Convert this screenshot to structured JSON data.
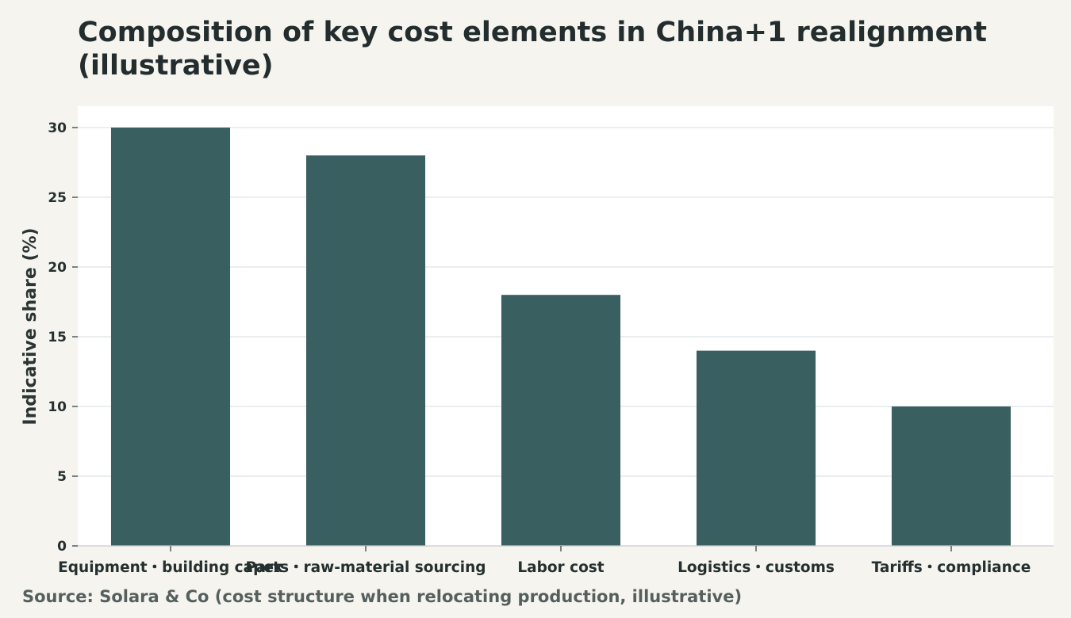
{
  "chart_data": {
    "type": "bar",
    "title": "Composition of key cost elements in China+1 realignment (illustrative)",
    "xlabel": "",
    "ylabel": "Indicative share (%)",
    "categories": [
      "Equipment・building capex",
      "Parts・raw-material sourcing",
      "Labor cost",
      "Logistics・customs",
      "Tariffs・compliance"
    ],
    "values": [
      30,
      28,
      18,
      14,
      10
    ],
    "ylim": [
      0,
      30
    ],
    "yticks": [
      0,
      5,
      10,
      15,
      20,
      25,
      30
    ],
    "grid": true,
    "colors": {
      "bar": "#3a5f60",
      "plot_bg": "#ffffff",
      "page_bg": "#f5f4ef",
      "grid": "#dfe3e3"
    }
  },
  "source": "Source: Solara & Co (cost structure when relocating production, illustrative)"
}
